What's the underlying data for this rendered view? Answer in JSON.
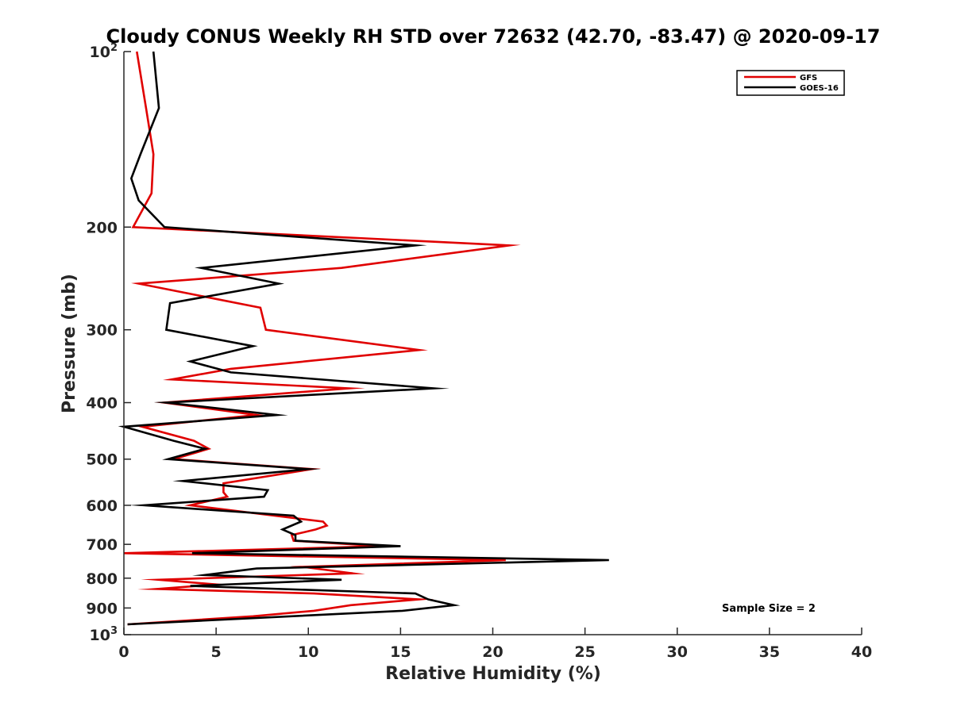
{
  "chart_data": {
    "type": "line",
    "title": "Cloudy CONUS Weekly RH STD over 72632 (42.70, -83.47) @ 2020-09-17",
    "xlabel": "Relative Humidity (%)",
    "ylabel": "Pressure (mb)",
    "xlim": [
      0,
      40
    ],
    "ylim": [
      100,
      1000
    ],
    "y_scale": "log",
    "y_reversed": true,
    "grid": false,
    "legend_position": "top-right",
    "x_ticks": [
      "0",
      "5",
      "10",
      "15",
      "20",
      "25",
      "30",
      "35",
      "40"
    ],
    "y_ticks": [
      {
        "value": 100,
        "base": "10",
        "exp": "2"
      },
      {
        "value": 200,
        "label": "200"
      },
      {
        "value": 300,
        "label": "300"
      },
      {
        "value": 400,
        "label": "400"
      },
      {
        "value": 500,
        "label": "500"
      },
      {
        "value": 600,
        "label": "600"
      },
      {
        "value": 700,
        "label": "700"
      },
      {
        "value": 800,
        "label": "800"
      },
      {
        "value": 900,
        "label": "900"
      },
      {
        "value": 1000,
        "base": "10",
        "exp": "3"
      }
    ],
    "annotation": "Sample Size = 2",
    "series": [
      {
        "name": "GFS",
        "color": "#e00000",
        "points": [
          [
            0.7,
            100
          ],
          [
            1.2,
            125
          ],
          [
            1.6,
            150
          ],
          [
            1.5,
            175
          ],
          [
            0.5,
            200
          ],
          [
            20.9,
            215
          ],
          [
            11.8,
            235
          ],
          [
            0.8,
            250
          ],
          [
            7.4,
            275
          ],
          [
            7.7,
            300
          ],
          [
            16.0,
            325
          ],
          [
            5.8,
            350
          ],
          [
            2.6,
            365
          ],
          [
            12.2,
            378
          ],
          [
            2.2,
            400
          ],
          [
            7.2,
            420
          ],
          [
            1.0,
            440
          ],
          [
            3.8,
            465
          ],
          [
            4.6,
            480
          ],
          [
            2.7,
            500
          ],
          [
            10.2,
            520
          ],
          [
            5.4,
            550
          ],
          [
            5.4,
            570
          ],
          [
            5.6,
            580
          ],
          [
            3.6,
            600
          ],
          [
            10.8,
            640
          ],
          [
            11.0,
            650
          ],
          [
            10.4,
            660
          ],
          [
            9.1,
            675
          ],
          [
            9.2,
            690
          ],
          [
            14.0,
            705
          ],
          [
            0.0,
            725
          ],
          [
            20.7,
            745
          ],
          [
            9.7,
            765
          ],
          [
            12.4,
            785
          ],
          [
            1.9,
            805
          ],
          [
            5.0,
            820
          ],
          [
            1.8,
            835
          ],
          [
            10.3,
            850
          ],
          [
            16.0,
            870
          ],
          [
            12.3,
            890
          ],
          [
            10.3,
            910
          ],
          [
            7.0,
            930
          ],
          [
            0.2,
            960
          ]
        ]
      },
      {
        "name": "GOES-16",
        "color": "#000000",
        "points": [
          [
            1.6,
            100
          ],
          [
            1.9,
            125
          ],
          [
            0.9,
            150
          ],
          [
            0.4,
            165
          ],
          [
            0.8,
            180
          ],
          [
            2.2,
            200
          ],
          [
            15.8,
            215
          ],
          [
            4.2,
            235
          ],
          [
            8.4,
            250
          ],
          [
            2.5,
            270
          ],
          [
            2.3,
            300
          ],
          [
            7.0,
            320
          ],
          [
            3.6,
            340
          ],
          [
            5.8,
            355
          ],
          [
            16.8,
            378
          ],
          [
            2.3,
            400
          ],
          [
            8.3,
            420
          ],
          [
            0.0,
            440
          ],
          [
            2.7,
            465
          ],
          [
            4.4,
            480
          ],
          [
            2.4,
            500
          ],
          [
            10.0,
            520
          ],
          [
            3.2,
            545
          ],
          [
            7.8,
            565
          ],
          [
            7.6,
            580
          ],
          [
            1.1,
            600
          ],
          [
            9.2,
            625
          ],
          [
            9.6,
            640
          ],
          [
            8.6,
            660
          ],
          [
            9.3,
            675
          ],
          [
            9.3,
            690
          ],
          [
            15.0,
            705
          ],
          [
            3.7,
            725
          ],
          [
            26.3,
            745
          ],
          [
            7.2,
            770
          ],
          [
            4.4,
            790
          ],
          [
            11.8,
            805
          ],
          [
            3.6,
            825
          ],
          [
            15.8,
            850
          ],
          [
            16.5,
            870
          ],
          [
            17.9,
            890
          ],
          [
            15.1,
            910
          ],
          [
            0.2,
            960
          ]
        ]
      }
    ]
  }
}
